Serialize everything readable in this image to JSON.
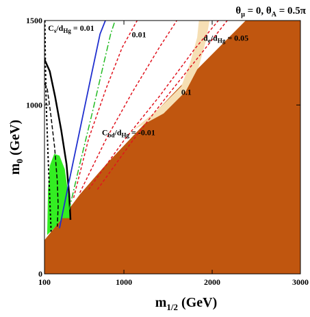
{
  "chart_data": {
    "type": "line",
    "title": "θ_μ = 0, θ_A = 0.5π",
    "xlabel": "m_1/2 (GeV)",
    "ylabel": "m_0 (GeV)",
    "xlim": [
      100,
      3000
    ],
    "ylim": [
      0,
      1500
    ],
    "xticks": [
      100,
      1000,
      2000,
      3000
    ],
    "yticks": [
      0,
      1000,
      1500
    ],
    "grid": false,
    "regions": [
      {
        "name": "stau-lsp-excluded",
        "color": "#c0560f",
        "polygon": [
          [
            100,
            200
          ],
          [
            300,
            330
          ],
          [
            500,
            470
          ],
          [
            800,
            650
          ],
          [
            1200,
            870
          ],
          [
            1600,
            1090
          ],
          [
            2000,
            1300
          ],
          [
            2380,
            1500
          ],
          [
            3000,
            1500
          ],
          [
            3000,
            0
          ],
          [
            100,
            0
          ]
        ]
      },
      {
        "name": "bsg-excluded",
        "color": "#33ee22",
        "polygon": [
          [
            130,
            230
          ],
          [
            140,
            500
          ],
          [
            160,
            640
          ],
          [
            210,
            710
          ],
          [
            270,
            700
          ],
          [
            330,
            620
          ],
          [
            370,
            470
          ],
          [
            390,
            330
          ],
          [
            300,
            330
          ],
          [
            200,
            265
          ],
          [
            130,
            230
          ]
        ]
      },
      {
        "name": "cosmology-preferred",
        "color": "#f6dfb4",
        "polygon": [
          [
            1100,
            850
          ],
          [
            1400,
            980
          ],
          [
            1650,
            1110
          ],
          [
            1750,
            1250
          ],
          [
            1830,
            1400
          ],
          [
            1850,
            1500
          ],
          [
            1970,
            1500
          ],
          [
            1930,
            1380
          ],
          [
            1850,
            1230
          ],
          [
            1700,
            1080
          ],
          [
            1450,
            950
          ],
          [
            1100,
            850
          ]
        ]
      }
    ],
    "series": [
      {
        "name": "C_s/d_Hg = 0.01",
        "color": "#000000",
        "dash": "3,3",
        "width": 2,
        "x": [
          105,
          110,
          120,
          140,
          160,
          175
        ],
        "y": [
          1500,
          1250,
          1000,
          700,
          450,
          250
        ]
      },
      {
        "name": "C_bd/d_Hg = -0.01",
        "color": "#000000",
        "dash": "6,3",
        "width": 1.5,
        "x": [
          100,
          130,
          170,
          215,
          245,
          255,
          245
        ],
        "y": [
          1130,
          1100,
          950,
          750,
          550,
          400,
          280
        ]
      },
      {
        "color": "#000000",
        "dash": "",
        "width": 2.5,
        "x": [
          100,
          160,
          220,
          290,
          350,
          380,
          395
        ],
        "y": [
          1270,
          1200,
          1050,
          850,
          650,
          470,
          320
        ]
      },
      {
        "color": "#1f2fcf",
        "dash": "",
        "width": 1.8,
        "x": [
          270,
          380,
          500,
          620,
          730,
          790
        ],
        "y": [
          270,
          550,
          850,
          1150,
          1420,
          1500
        ]
      },
      {
        "color": "#22bb22",
        "dash": "9,3,2,3",
        "width": 1.5,
        "x": [
          380,
          500,
          640,
          760,
          850,
          900
        ],
        "y": [
          380,
          650,
          950,
          1220,
          1420,
          1500
        ]
      },
      {
        "name": "0.01",
        "color": "#e0141e",
        "dash": "4,3",
        "width": 1.5,
        "x": [
          430,
          600,
          800,
          980,
          1150
        ],
        "y": [
          450,
          800,
          1100,
          1340,
          1500
        ]
      },
      {
        "color": "#e0141e",
        "dash": "4,3",
        "width": 1.5,
        "x": [
          500,
          800,
          1100,
          1400,
          1600
        ],
        "y": [
          480,
          800,
          1080,
          1340,
          1500
        ]
      },
      {
        "name": "d_e/d_Hg = 0.05",
        "color": "#e0141e",
        "dash": "4,3",
        "width": 1.5,
        "x": [
          600,
          1000,
          1400,
          1800,
          2070
        ],
        "y": [
          500,
          790,
          1050,
          1330,
          1500
        ]
      },
      {
        "name": "0.1",
        "color": "#e0141e",
        "dash": "4,3",
        "width": 1.5,
        "x": [
          700,
          1100,
          1500,
          1900,
          2170
        ],
        "y": [
          500,
          790,
          1060,
          1320,
          1500
        ]
      }
    ],
    "annotations": [
      {
        "text": "C_s/d_Hg = 0.01",
        "x": 140,
        "y": 1440
      },
      {
        "text": "0.01",
        "x": 1090,
        "y": 1400
      },
      {
        "text": "d_e/d_Hg = 0.05",
        "x": 1900,
        "y": 1380
      },
      {
        "text": "0.1",
        "x": 1650,
        "y": 1060
      },
      {
        "text": "C_bd/d_Hg = -0.01",
        "x": 750,
        "y": 820
      }
    ]
  }
}
